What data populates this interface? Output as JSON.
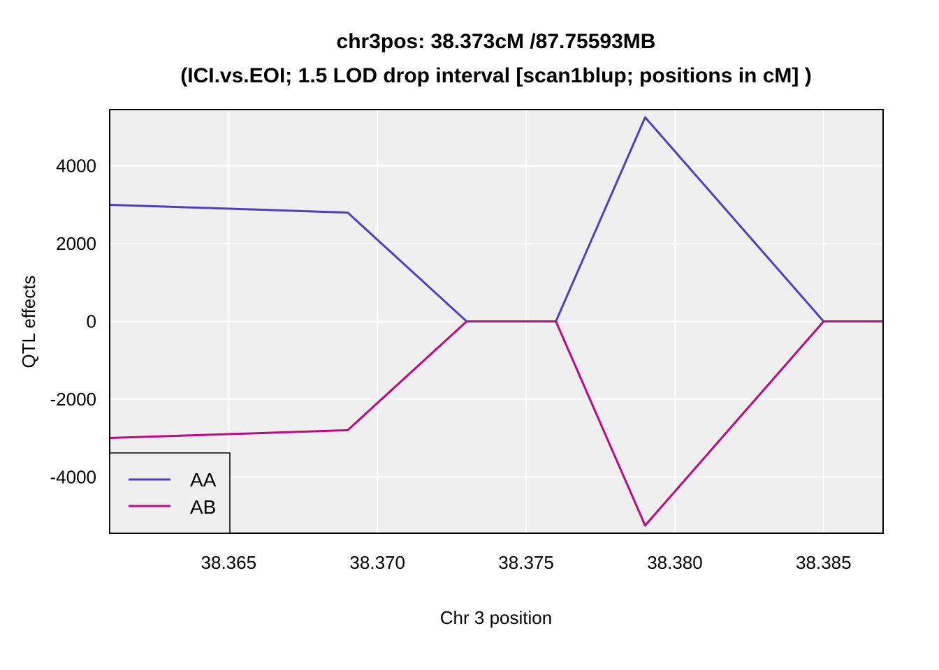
{
  "chart_data": {
    "type": "line",
    "title_line1": "chr3pos: 38.373cM /87.75593MB",
    "title_line2": "(ICI.vs.EOI; 1.5 LOD drop interval [scan1blup; positions in cM] )",
    "xlabel": "Chr 3 position",
    "ylabel": "QTL effects",
    "xlim": [
      38.361,
      38.387
    ],
    "ylim": [
      -5450,
      5450
    ],
    "x_ticks": [
      38.365,
      38.37,
      38.375,
      38.38,
      38.385
    ],
    "x_tick_labels": [
      "38.365",
      "38.370",
      "38.375",
      "38.380",
      "38.385"
    ],
    "y_ticks": [
      4000,
      2000,
      0,
      -2000,
      -4000
    ],
    "y_tick_labels": [
      "4000",
      "2000",
      "0",
      "-2000",
      "-4000"
    ],
    "grid": true,
    "legend_position": "bottom-left",
    "series": [
      {
        "name": "AA",
        "color": "#4f3fbf",
        "x": [
          38.361,
          38.369,
          38.373,
          38.376,
          38.379,
          38.385,
          38.387
        ],
        "y": [
          3000,
          2800,
          0,
          0,
          5250,
          0,
          0
        ]
      },
      {
        "name": "AB",
        "color": "#c0087f",
        "x": [
          38.361,
          38.369,
          38.373,
          38.376,
          38.379,
          38.385,
          38.387
        ],
        "y": [
          -3000,
          -2800,
          0,
          0,
          -5250,
          0,
          0
        ]
      }
    ]
  }
}
